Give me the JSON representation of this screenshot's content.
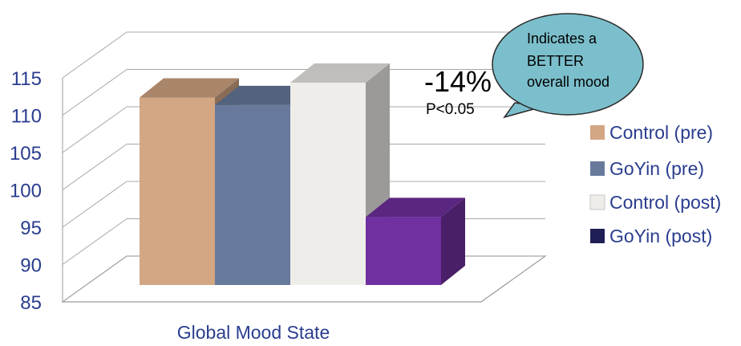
{
  "chart_data": {
    "type": "bar",
    "categories": [
      "Global Mood State"
    ],
    "series": [
      {
        "name": "Control (pre)",
        "values": [
          111.5
        ],
        "color": "#d3a684"
      },
      {
        "name": "GoYin (pre)",
        "values": [
          110.5
        ],
        "color": "#687a9c"
      },
      {
        "name": "Control (post)",
        "values": [
          113.5
        ],
        "color": "#efedea"
      },
      {
        "name": "GoYin (post)",
        "values": [
          95.5
        ],
        "color": "#7030a0"
      }
    ],
    "legend_marker_colors": [
      "#d3a684",
      "#687a9c",
      "#efedea",
      "#1f1f55"
    ],
    "ylim": [
      85,
      115
    ],
    "yticks": [
      "85",
      "90",
      "95",
      "100",
      "105",
      "110",
      "115"
    ],
    "grid": true,
    "legend_position": "right",
    "three_d": true,
    "annotation": {
      "change": "-14%",
      "pvalue": "P<0.05"
    },
    "callout": {
      "lines": [
        "Indicates a",
        "BETTER",
        "overall mood"
      ],
      "fill": "#7cbfcc"
    }
  }
}
